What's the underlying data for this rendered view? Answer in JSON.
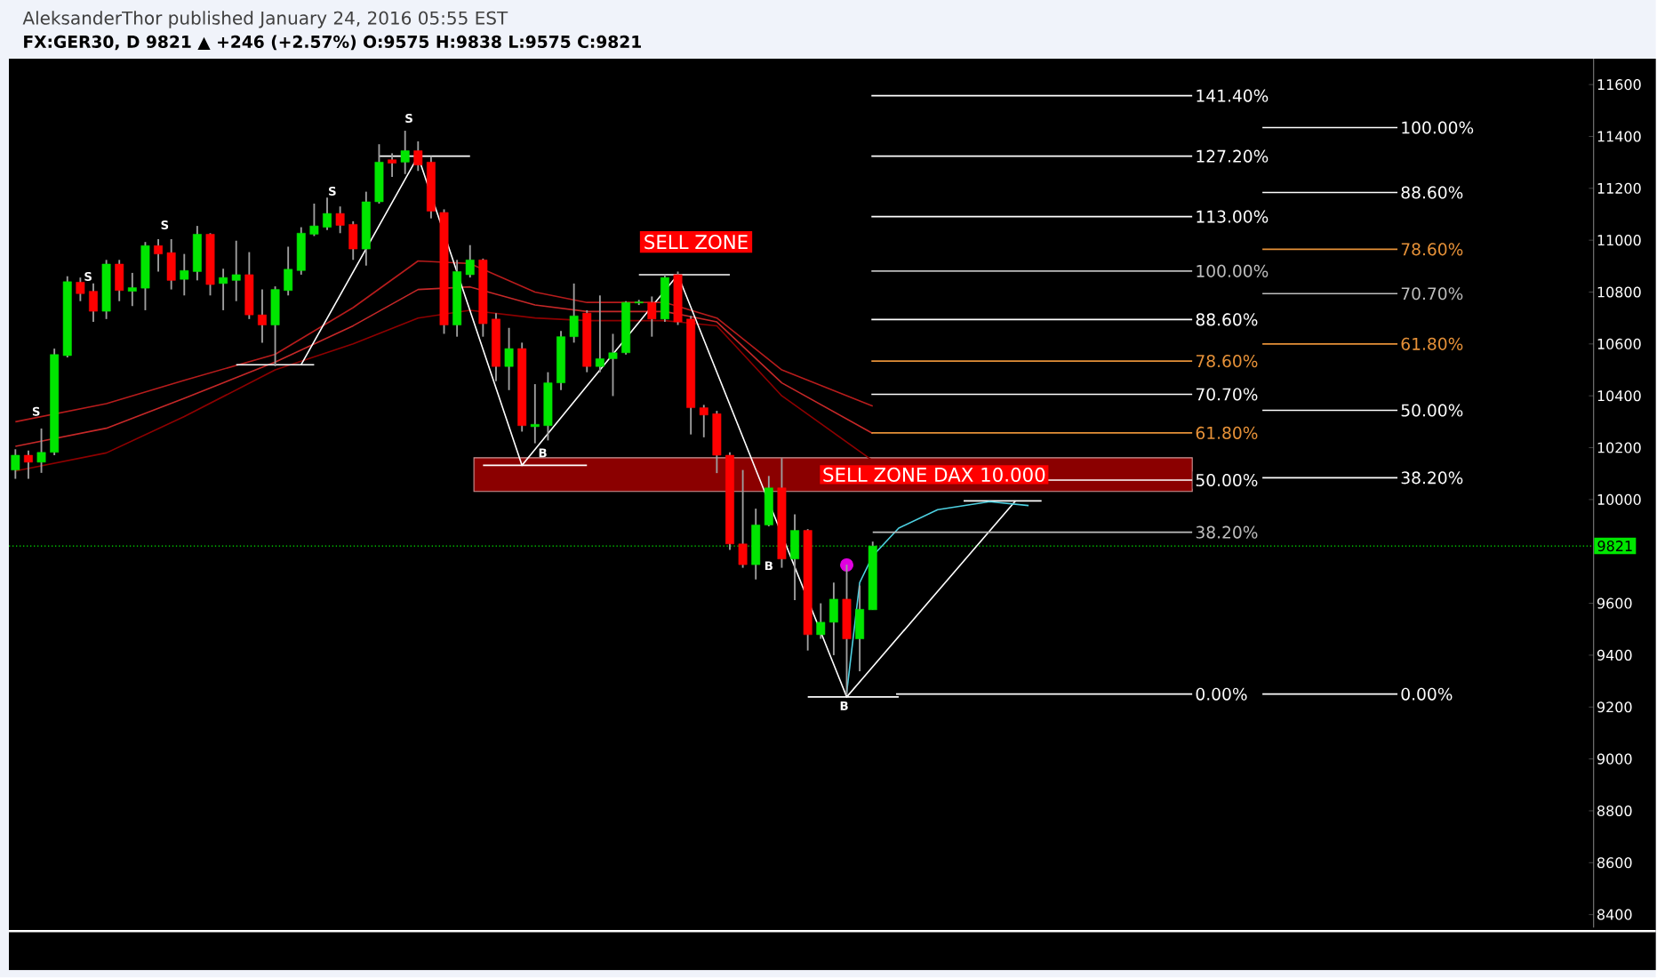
{
  "chart_data": {
    "type": "candlestick",
    "title": "FX:GER30, D 9821 ▲ +246 (+2.57%) O:9575 H:9838 L:9575 C:9821",
    "subtitle": "AleksanderThor published January 24, 2016 05:55 EST",
    "categories": [
      null,
      null,
      null,
      null,
      null,
      null,
      null,
      null,
      null,
      null,
      null,
      null,
      null,
      null,
      null,
      null,
      null,
      null,
      null,
      null,
      null,
      null,
      null,
      null,
      null,
      null,
      null,
      null,
      null,
      null,
      null,
      null,
      null,
      null,
      null,
      null,
      null,
      null,
      null,
      null,
      null,
      null,
      null,
      null,
      null,
      null,
      null,
      null,
      null,
      null,
      null,
      null,
      null,
      null,
      null,
      null,
      null,
      null,
      null,
      null,
      null,
      null,
      null,
      null,
      null,
      null,
      null,
      null,
      null,
      null,
      null,
      null,
      null,
      null,
      null,
      null,
      null,
      null,
      null,
      null,
      null,
      null,
      null,
      null,
      null,
      null,
      null,
      null,
      null,
      null,
      null,
      null,
      null,
      null,
      null,
      null,
      null,
      null,
      null,
      null,
      null,
      null,
      null,
      null,
      null,
      null,
      null,
      null,
      null,
      null,
      null,
      null,
      null,
      null,
      null,
      null,
      null,
      null,
      null,
      null,
      null,
      null
    ],
    "ohlc": [
      [
        10114,
        10194,
        10080,
        10171
      ],
      [
        10171,
        10189,
        10080,
        10144
      ],
      [
        10144,
        10274,
        10103,
        10182
      ],
      [
        10182,
        10582,
        10171,
        10559
      ],
      [
        10555,
        10861,
        10548,
        10840
      ],
      [
        10838,
        10856,
        10765,
        10794
      ],
      [
        10803,
        10833,
        10685,
        10726
      ],
      [
        10726,
        10924,
        10696,
        10908
      ],
      [
        10908,
        10924,
        10765,
        10806
      ],
      [
        10803,
        10874,
        10746,
        10817
      ],
      [
        10815,
        10993,
        10730,
        10979
      ],
      [
        10979,
        11004,
        10879,
        10947
      ],
      [
        10952,
        11004,
        10810,
        10845
      ],
      [
        10849,
        10947,
        10787,
        10883
      ],
      [
        10879,
        11055,
        10845,
        11023
      ],
      [
        11023,
        11027,
        10787,
        10829
      ],
      [
        10833,
        10890,
        10730,
        10856
      ],
      [
        10845,
        10998,
        10765,
        10867
      ],
      [
        10867,
        10954,
        10696,
        10712
      ],
      [
        10712,
        10810,
        10605,
        10673
      ],
      [
        10673,
        10822,
        10514,
        10810
      ],
      [
        10806,
        10975,
        10787,
        10888
      ],
      [
        10883,
        11050,
        10867,
        11027
      ],
      [
        11023,
        11141,
        11016,
        11055
      ],
      [
        11050,
        11164,
        11039,
        11103
      ],
      [
        11103,
        11130,
        11027,
        11057
      ],
      [
        11061,
        11073,
        10924,
        10966
      ],
      [
        10966,
        11187,
        10902,
        11148
      ],
      [
        11148,
        11370,
        11141,
        11301
      ],
      [
        11310,
        11335,
        11244,
        11297
      ],
      [
        11301,
        11422,
        11255,
        11345
      ],
      [
        11345,
        11381,
        11267,
        11290
      ],
      [
        11301,
        11324,
        11084,
        11112
      ],
      [
        11107,
        11119,
        10639,
        10673
      ],
      [
        10673,
        10924,
        10628,
        10879
      ],
      [
        10867,
        10981,
        10856,
        10924
      ],
      [
        10924,
        10929,
        10628,
        10678
      ],
      [
        10696,
        10719,
        10456,
        10513
      ],
      [
        10513,
        10662,
        10422,
        10582
      ],
      [
        10582,
        10605,
        10262,
        10285
      ],
      [
        10281,
        10445,
        10217,
        10290
      ],
      [
        10285,
        10491,
        10228,
        10450
      ],
      [
        10450,
        10650,
        10422,
        10628
      ],
      [
        10628,
        10833,
        10605,
        10708
      ],
      [
        10719,
        10730,
        10491,
        10513
      ],
      [
        10513,
        10787,
        10491,
        10543
      ],
      [
        10543,
        10639,
        10399,
        10566
      ],
      [
        10566,
        10765,
        10559,
        10760
      ],
      [
        10758,
        10770,
        10750,
        10762
      ],
      [
        10760,
        10783,
        10628,
        10696
      ],
      [
        10696,
        10867,
        10685,
        10856
      ],
      [
        10867,
        10879,
        10673,
        10685
      ],
      [
        10696,
        10708,
        10251,
        10354
      ],
      [
        10354,
        10365,
        10240,
        10326
      ],
      [
        10331,
        10342,
        10102,
        10171
      ],
      [
        10171,
        10182,
        9806,
        9829
      ],
      [
        9829,
        10114,
        9737,
        9749
      ],
      [
        9749,
        9965,
        9692,
        9902
      ],
      [
        9902,
        10091,
        9897,
        10045
      ],
      [
        10045,
        10160,
        9737,
        9771
      ],
      [
        9771,
        9943,
        9612,
        9881
      ],
      [
        9881,
        9886,
        9418,
        9479
      ],
      [
        9479,
        9600,
        9463,
        9527
      ],
      [
        9527,
        9680,
        9400,
        9616
      ],
      [
        9616,
        9749,
        9246,
        9463
      ],
      [
        9463,
        9669,
        9338,
        9577
      ],
      [
        9575,
        9838,
        9575,
        9821
      ],
      null,
      null,
      null,
      null,
      null,
      null,
      null,
      null,
      null,
      null,
      null,
      null,
      null,
      null,
      null,
      null,
      null,
      null,
      null,
      null,
      null,
      null,
      null,
      null,
      null,
      null,
      null,
      null,
      null,
      null,
      null,
      null,
      null,
      null,
      null,
      null,
      null,
      null,
      null,
      null,
      null,
      null,
      null,
      null,
      null,
      null,
      null,
      null,
      null,
      null,
      null,
      null,
      null,
      null,
      null
    ],
    "ylim": [
      8350,
      11700
    ],
    "yticks": [
      8400,
      8600,
      8800,
      9000,
      9200,
      9400,
      9600,
      10000,
      10200,
      10400,
      10600,
      10800,
      11000,
      11200,
      11400,
      11600
    ],
    "tick_labels": "y",
    "series": [
      {
        "type": "line",
        "color": "#b71c1c",
        "values": [
          10300,
          null,
          null,
          null,
          null,
          null,
          null,
          10370,
          null,
          null,
          null,
          null,
          null,
          10460,
          null,
          null,
          null,
          null,
          null,
          null,
          10560,
          null,
          null,
          null,
          null,
          null,
          10740,
          null,
          null,
          null,
          null,
          10920,
          null,
          null,
          null,
          10910,
          null,
          null,
          null,
          null,
          10800,
          null,
          null,
          null,
          10760,
          null,
          null,
          null,
          null,
          null,
          10760,
          null,
          null,
          null,
          10700,
          null,
          null,
          null,
          null,
          10500,
          null,
          null,
          null,
          null,
          null,
          null,
          10360,
          null,
          null,
          null,
          null,
          null,
          null,
          null,
          null,
          null,
          null,
          null,
          null,
          null,
          null,
          null,
          null,
          null,
          null,
          null,
          null,
          null,
          null,
          null,
          null,
          null,
          null,
          null,
          null,
          null,
          null,
          null,
          null,
          null,
          null,
          null,
          null,
          null,
          null,
          null,
          null,
          null,
          null,
          null,
          null,
          null,
          null,
          null,
          null,
          null,
          null,
          null,
          null,
          null,
          null,
          null
        ]
      },
      {
        "type": "line",
        "color": "#c62828",
        "values": [
          10205,
          null,
          null,
          null,
          null,
          null,
          null,
          10275,
          null,
          null,
          null,
          null,
          null,
          10390,
          null,
          null,
          null,
          null,
          null,
          null,
          10530,
          null,
          null,
          null,
          null,
          null,
          10670,
          null,
          null,
          null,
          null,
          10810,
          null,
          null,
          null,
          10820,
          null,
          null,
          null,
          null,
          10750,
          null,
          null,
          null,
          10725,
          null,
          null,
          null,
          null,
          null,
          10725,
          null,
          null,
          null,
          10685,
          null,
          null,
          null,
          null,
          10450,
          null,
          null,
          null,
          null,
          null,
          null,
          10255,
          null,
          null,
          null,
          null,
          null,
          null,
          null,
          null,
          null,
          null,
          null,
          null,
          null,
          null,
          null,
          null,
          null,
          null,
          null,
          null,
          null,
          null,
          null,
          null,
          null,
          null,
          null,
          null,
          null,
          null,
          null,
          null,
          null,
          null,
          null,
          null,
          null,
          null,
          null,
          null,
          null,
          null,
          null,
          null,
          null,
          null,
          null,
          null,
          null,
          null,
          null,
          null,
          null,
          null,
          null
        ]
      },
      {
        "type": "line",
        "color": "#8e0000",
        "values": [
          10110,
          null,
          null,
          null,
          null,
          null,
          null,
          10180,
          null,
          null,
          null,
          null,
          null,
          10320,
          null,
          null,
          null,
          null,
          null,
          null,
          10500,
          null,
          null,
          null,
          null,
          null,
          10600,
          null,
          null,
          null,
          null,
          10700,
          null,
          null,
          null,
          10730,
          null,
          null,
          null,
          null,
          10700,
          null,
          null,
          null,
          10690,
          null,
          null,
          null,
          null,
          null,
          10690,
          null,
          null,
          null,
          10670,
          null,
          null,
          null,
          null,
          10400,
          null,
          null,
          null,
          null,
          null,
          null,
          10150,
          null,
          null,
          null,
          null,
          null,
          null,
          null,
          null,
          null,
          null,
          null,
          null,
          null,
          null,
          null,
          null,
          null,
          null,
          null,
          null,
          null,
          null,
          null,
          null,
          null,
          null,
          null,
          null,
          null,
          null,
          null,
          null,
          null,
          null,
          null,
          null,
          null,
          null,
          null,
          null,
          null,
          null,
          null,
          null,
          null,
          null,
          null,
          null,
          null,
          null,
          null,
          null,
          null,
          null,
          null
        ]
      },
      {
        "type": "line",
        "color": "#ffffff",
        "values": [
          null,
          null,
          null,
          null,
          null,
          null,
          null,
          null,
          null,
          null,
          null,
          null,
          null,
          null,
          null,
          null,
          null,
          null,
          null,
          null,
          null,
          null,
          10520,
          null,
          null,
          null,
          null,
          null,
          null,
          null,
          null,
          11324,
          null,
          null,
          null,
          null,
          null,
          null,
          null,
          10132,
          null,
          null,
          null,
          null,
          null,
          null,
          null,
          null,
          null,
          null,
          null,
          10867,
          null,
          null,
          null,
          null,
          null,
          null,
          null,
          null,
          null,
          null,
          null,
          null,
          9239,
          null,
          null,
          null,
          null,
          null,
          null,
          null,
          null,
          null,
          null,
          null,
          null,
          9995,
          null,
          null,
          null,
          null,
          null,
          null,
          null,
          null,
          null,
          null,
          null,
          null,
          null,
          null,
          null,
          null,
          null,
          null,
          null,
          null,
          null,
          null,
          null,
          null,
          null,
          null,
          null,
          null,
          null,
          null,
          null,
          null,
          null,
          null,
          null,
          null,
          null,
          null,
          null,
          null,
          null,
          null,
          null,
          null
        ]
      },
      {
        "type": "line",
        "color": "#ffffff",
        "values": [
          null,
          null,
          null,
          null,
          null,
          null,
          null,
          null,
          null,
          null,
          null,
          null,
          null,
          null,
          null,
          null,
          null,
          10520,
          null,
          null,
          null,
          null,
          null,
          10520,
          null,
          null,
          null,
          null,
          null,
          null,
          null,
          null,
          null,
          null,
          null,
          null,
          null,
          null,
          null,
          null,
          null,
          null,
          null,
          null,
          null,
          null,
          null,
          null,
          null,
          null,
          null,
          null,
          null,
          null,
          null,
          null,
          null,
          null,
          null,
          null,
          null,
          null,
          null,
          null,
          null,
          null,
          null,
          null,
          null,
          null,
          null,
          null,
          null,
          null,
          null,
          null,
          null,
          null,
          null,
          null,
          null,
          null,
          null,
          null,
          null,
          null,
          null,
          null,
          null,
          null,
          null,
          null,
          null,
          null,
          null,
          null,
          null,
          null,
          null,
          null,
          null,
          null,
          null,
          null,
          null,
          null,
          null,
          null,
          null,
          null,
          null,
          null,
          null,
          null,
          null,
          null,
          null,
          null,
          null,
          null,
          null,
          null
        ]
      },
      {
        "type": "line",
        "color": "#ffffff",
        "values": [
          null,
          null,
          null,
          null,
          null,
          null,
          null,
          null,
          null,
          null,
          null,
          null,
          null,
          null,
          null,
          null,
          null,
          null,
          null,
          null,
          null,
          null,
          null,
          null,
          null,
          null,
          null,
          null,
          11324,
          null,
          null,
          null,
          null,
          null,
          null,
          11324,
          null,
          null,
          null,
          null,
          null,
          null,
          null,
          null,
          null,
          null,
          null,
          null,
          null,
          null,
          null,
          null,
          null,
          null,
          null,
          null,
          null,
          null,
          null,
          null,
          null,
          null,
          null,
          null,
          null,
          null,
          null,
          null,
          null,
          null,
          null,
          null,
          null,
          null,
          null,
          null,
          null,
          null,
          null,
          null,
          null,
          null,
          null,
          null,
          null,
          null,
          null,
          null,
          null,
          null,
          null,
          null,
          null,
          null,
          null,
          null,
          null,
          null,
          null,
          null,
          null,
          null,
          null,
          null,
          null,
          null,
          null,
          null,
          null,
          null,
          null,
          null,
          null,
          null,
          null,
          null,
          null,
          null,
          null,
          null,
          null,
          null
        ]
      },
      {
        "type": "line",
        "color": "#ffffff",
        "values": [
          null,
          null,
          null,
          null,
          null,
          null,
          null,
          null,
          null,
          null,
          null,
          null,
          null,
          null,
          null,
          null,
          null,
          null,
          null,
          null,
          null,
          null,
          null,
          null,
          null,
          null,
          null,
          null,
          null,
          null,
          null,
          null,
          null,
          null,
          null,
          null,
          10132,
          null,
          null,
          null,
          null,
          null,
          null,
          null,
          10132,
          null,
          null,
          null,
          null,
          null,
          null,
          null,
          null,
          null,
          null,
          null,
          null,
          null,
          null,
          null,
          null,
          null,
          null,
          null,
          null,
          null,
          null,
          null,
          null,
          null,
          null,
          null,
          null,
          null,
          null,
          null,
          null,
          null,
          null,
          null,
          null,
          null,
          null,
          null,
          null,
          null,
          null,
          null,
          null,
          null,
          null,
          null,
          null,
          null,
          null,
          null,
          null,
          null,
          null,
          null,
          null,
          null,
          null,
          null,
          null,
          null,
          null,
          null,
          null,
          null,
          null,
          null,
          null,
          null,
          null,
          null,
          null,
          null,
          null,
          null,
          null,
          null
        ]
      },
      {
        "type": "line",
        "color": "#ffffff",
        "values": [
          null,
          null,
          null,
          null,
          null,
          null,
          null,
          null,
          null,
          null,
          null,
          null,
          null,
          null,
          null,
          null,
          null,
          null,
          null,
          null,
          null,
          null,
          null,
          null,
          null,
          null,
          null,
          null,
          null,
          null,
          null,
          null,
          null,
          null,
          null,
          null,
          null,
          null,
          null,
          null,
          null,
          null,
          null,
          null,
          null,
          null,
          null,
          null,
          10867,
          null,
          null,
          null,
          null,
          null,
          null,
          10867,
          null,
          null,
          null,
          null,
          null,
          null,
          null,
          null,
          null,
          null,
          null,
          null,
          null,
          null,
          null,
          null,
          null,
          null,
          null,
          null,
          null,
          null,
          null,
          null,
          null,
          null,
          null,
          null,
          null,
          null,
          null,
          null,
          null,
          null,
          null,
          null,
          null,
          null,
          null,
          null,
          null,
          null,
          null,
          null,
          null,
          null,
          null,
          null,
          null,
          null,
          null,
          null,
          null,
          null,
          null,
          null,
          null,
          null,
          null,
          null,
          null,
          null,
          null,
          null,
          null,
          null
        ]
      },
      {
        "type": "line",
        "color": "#ffffff",
        "values": [
          null,
          null,
          null,
          null,
          null,
          null,
          null,
          null,
          null,
          null,
          null,
          null,
          null,
          null,
          null,
          null,
          null,
          null,
          null,
          null,
          null,
          null,
          null,
          null,
          null,
          null,
          null,
          null,
          null,
          null,
          null,
          null,
          null,
          null,
          null,
          null,
          null,
          null,
          null,
          null,
          null,
          null,
          null,
          null,
          null,
          null,
          null,
          null,
          null,
          null,
          null,
          null,
          null,
          null,
          null,
          null,
          null,
          null,
          null,
          null,
          null,
          9239,
          null,
          null,
          null,
          null,
          null,
          null,
          9239,
          null,
          null,
          null,
          null,
          null,
          null,
          null,
          null,
          null,
          null,
          null,
          null,
          null,
          null,
          null,
          null,
          null,
          null,
          null,
          null,
          null,
          null,
          null,
          null,
          null,
          null,
          null,
          null,
          null,
          null,
          null,
          null,
          null,
          null,
          null,
          null,
          null,
          null,
          null,
          null,
          null,
          null,
          null,
          null,
          null,
          null,
          null,
          null,
          null,
          null,
          null,
          null,
          null
        ]
      },
      {
        "type": "line",
        "color": "#ffffff",
        "values": [
          null,
          null,
          null,
          null,
          null,
          null,
          null,
          null,
          null,
          null,
          null,
          null,
          null,
          null,
          null,
          null,
          null,
          null,
          null,
          null,
          null,
          null,
          null,
          null,
          null,
          null,
          null,
          null,
          null,
          null,
          null,
          null,
          null,
          null,
          null,
          null,
          null,
          null,
          null,
          null,
          null,
          null,
          null,
          null,
          null,
          null,
          null,
          null,
          null,
          null,
          null,
          null,
          null,
          null,
          null,
          null,
          null,
          null,
          null,
          null,
          null,
          null,
          null,
          null,
          null,
          null,
          null,
          null,
          null,
          null,
          null,
          null,
          null,
          9995,
          null,
          null,
          null,
          null,
          null,
          9995,
          null,
          null,
          null,
          null,
          null,
          null,
          null,
          null,
          null,
          null,
          null,
          null,
          null,
          null,
          null,
          null,
          null,
          null,
          null,
          null,
          null,
          null,
          null,
          null,
          null,
          null,
          null,
          null,
          null,
          null,
          null,
          null,
          null,
          null,
          null,
          null,
          null,
          null,
          null,
          null,
          null,
          null
        ]
      },
      {
        "type": "line",
        "color": "#4dd0e1",
        "values": [
          null,
          null,
          null,
          null,
          null,
          null,
          null,
          null,
          null,
          null,
          null,
          null,
          null,
          null,
          null,
          null,
          null,
          null,
          null,
          null,
          null,
          null,
          null,
          null,
          null,
          null,
          null,
          null,
          null,
          null,
          null,
          null,
          null,
          null,
          null,
          null,
          null,
          null,
          null,
          null,
          null,
          null,
          null,
          null,
          null,
          null,
          null,
          null,
          null,
          null,
          null,
          null,
          null,
          null,
          null,
          null,
          null,
          null,
          null,
          null,
          null,
          null,
          null,
          null,
          9257,
          9680,
          9783,
          null,
          9890,
          null,
          null,
          9961,
          null,
          null,
          null,
          9992,
          null,
          null,
          9977,
          null,
          null,
          null,
          null,
          null,
          null,
          null,
          null,
          null,
          null,
          null,
          null,
          null,
          null,
          null,
          null,
          null,
          null,
          null,
          null,
          null,
          null,
          null,
          null,
          null,
          null,
          null,
          null,
          null,
          null,
          null,
          null,
          null,
          null,
          null,
          null,
          null,
          null,
          null,
          null,
          null,
          null,
          null
        ]
      },
      {
        "type": "scatter",
        "color": "#e000e0",
        "values": [
          null,
          null,
          null,
          null,
          null,
          null,
          null,
          null,
          null,
          null,
          null,
          null,
          null,
          null,
          null,
          null,
          null,
          null,
          null,
          null,
          null,
          null,
          null,
          null,
          null,
          null,
          null,
          null,
          null,
          null,
          null,
          null,
          null,
          null,
          null,
          null,
          null,
          null,
          null,
          null,
          null,
          null,
          null,
          null,
          null,
          null,
          null,
          null,
          null,
          null,
          null,
          null,
          null,
          null,
          null,
          null,
          null,
          null,
          null,
          null,
          null,
          null,
          null,
          null,
          9748,
          null,
          null,
          null,
          null,
          null,
          null,
          null,
          null,
          null,
          null,
          null,
          null,
          null,
          null,
          null,
          null,
          null,
          null,
          null,
          null,
          null,
          null,
          null,
          null,
          null,
          null,
          null,
          null,
          null,
          null,
          null,
          null,
          null,
          null,
          null,
          null,
          null,
          null,
          null,
          null,
          null,
          null,
          null,
          null,
          null,
          null,
          null,
          null,
          null,
          null,
          null,
          null,
          null,
          null,
          null,
          null,
          null
        ]
      }
    ],
    "ref_lines": [
      {
        "axis": "y",
        "value": 9821,
        "label": "9821",
        "color": "#00e600",
        "line_style": "dotted"
      }
    ],
    "bands": [
      {
        "axis": "y",
        "from": 10031,
        "to": 10161,
        "label": "SELL ZONE DAX 10.000",
        "color": "#8b0000"
      }
    ],
    "annotations": [
      "SELL ZONE",
      "S",
      "S",
      "S",
      "S",
      "S",
      "B",
      "B",
      "B",
      "141.40%",
      "127.20%",
      "113.00%",
      "100.00%",
      "88.60%",
      "78.60%",
      "70.70%",
      "61.80%",
      "50.00%",
      "38.20%",
      "0.00%",
      "100.00%",
      "88.60%",
      "78.60%",
      "70.70%",
      "61.80%",
      "50.00%",
      "38.20%",
      "0.00%"
    ]
  }
}
